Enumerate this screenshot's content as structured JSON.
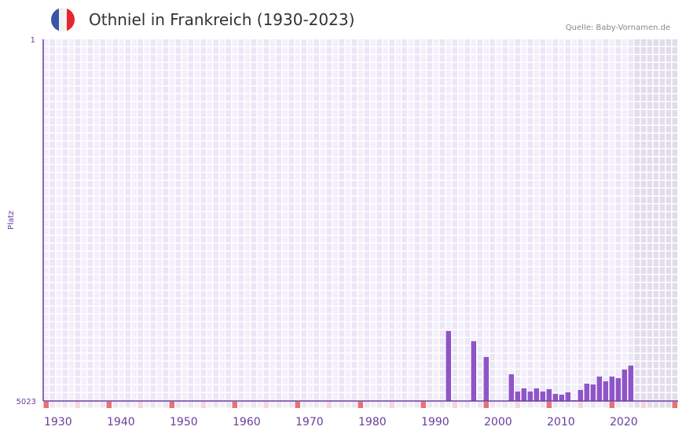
{
  "header": {
    "title": "Othniel in Frankreich (1930-2023)",
    "source": "Quelle: Baby-Vornamen.de",
    "flag": "france-flag"
  },
  "colors": {
    "bar": "#8e55c8",
    "axis": "#6a3d9a",
    "marker": "#e57373",
    "marker_light": "#f5d6df",
    "grid_a": "#f3effb",
    "grid_b": "#ece6f7",
    "future": "#e2dcec"
  },
  "chart_data": {
    "type": "bar",
    "title": "Othniel in Frankreich (1930-2023)",
    "ylabel": "Platz",
    "ylim": [
      5023,
      1
    ],
    "yticks": [
      "1",
      "5023"
    ],
    "xlim": [
      1930,
      2030
    ],
    "xticks": [
      "1930",
      "1940",
      "1950",
      "1960",
      "1970",
      "1980",
      "1990",
      "2000",
      "2010",
      "2020"
    ],
    "last_data_year": 2023,
    "bars": [
      {
        "year": 1994,
        "rank": 4051
      },
      {
        "year": 1998,
        "rank": 4193
      },
      {
        "year": 2000,
        "rank": 4412
      },
      {
        "year": 2004,
        "rank": 4652
      },
      {
        "year": 2005,
        "rank": 4892
      },
      {
        "year": 2006,
        "rank": 4848
      },
      {
        "year": 2007,
        "rank": 4892
      },
      {
        "year": 2008,
        "rank": 4848
      },
      {
        "year": 2009,
        "rank": 4892
      },
      {
        "year": 2010,
        "rank": 4859
      },
      {
        "year": 2011,
        "rank": 4925
      },
      {
        "year": 2012,
        "rank": 4936
      },
      {
        "year": 2013,
        "rank": 4903
      },
      {
        "year": 2014,
        "rank": 5012
      },
      {
        "year": 2015,
        "rank": 4870
      },
      {
        "year": 2016,
        "rank": 4783
      },
      {
        "year": 2017,
        "rank": 4794
      },
      {
        "year": 2018,
        "rank": 4684
      },
      {
        "year": 2019,
        "rank": 4750
      },
      {
        "year": 2020,
        "rank": 4684
      },
      {
        "year": 2021,
        "rank": 4706
      },
      {
        "year": 2022,
        "rank": 4586
      },
      {
        "year": 2023,
        "rank": 4532
      }
    ]
  }
}
